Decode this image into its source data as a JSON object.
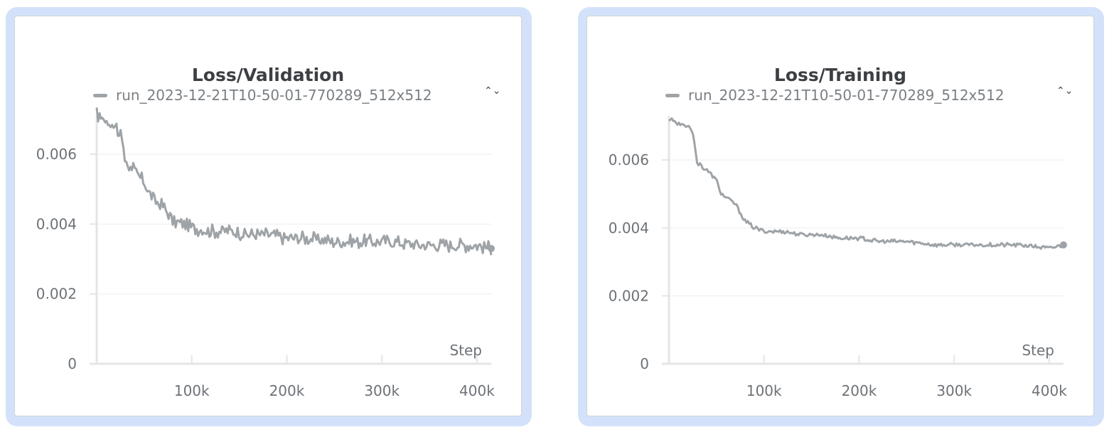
{
  "colors": {
    "series": "#9ea3a7",
    "axis": "#e3e5e7",
    "grid": "#eceef0",
    "panel_border": "#d3e2fa"
  },
  "icons": {
    "legend_toggle": "chevron-up-down-icon"
  },
  "chart_data": [
    {
      "type": "line",
      "title": "Loss/Validation",
      "xlabel": "Step",
      "ylabel": "",
      "xlim": [
        0,
        415000
      ],
      "ylim": [
        0,
        0.0071
      ],
      "xticks": [
        100000,
        200000,
        300000,
        400000
      ],
      "xtick_labels": [
        "100k",
        "200k",
        "300k",
        "400k"
      ],
      "yticks": [
        0,
        0.002,
        0.004,
        0.006
      ],
      "ytick_labels": [
        "0",
        "0.002",
        "0.004",
        "0.006"
      ],
      "grid": true,
      "legend_position": "top",
      "legend_toggle": "⌃⌄",
      "series": [
        {
          "name": "run_2023-12-21T10-50-01-770289_512x512",
          "x": [
            0,
            10000,
            20000,
            25000,
            30000,
            40000,
            50000,
            55000,
            60000,
            70000,
            80000,
            90000,
            100000,
            120000,
            140000,
            160000,
            180000,
            200000,
            220000,
            250000,
            280000,
            310000,
            340000,
            370000,
            400000,
            415000
          ],
          "y": [
            0.0071,
            0.007,
            0.0068,
            0.0066,
            0.0058,
            0.0055,
            0.0052,
            0.0049,
            0.0047,
            0.0045,
            0.0041,
            0.004,
            0.0039,
            0.0038,
            0.0038,
            0.0037,
            0.0037,
            0.0036,
            0.0036,
            0.0035,
            0.0035,
            0.0035,
            0.0034,
            0.0034,
            0.0034,
            0.0033
          ]
        }
      ]
    },
    {
      "type": "line",
      "title": "Loss/Training",
      "xlabel": "Step",
      "ylabel": "",
      "xlim": [
        0,
        415000
      ],
      "ylim": [
        0,
        0.0073
      ],
      "xticks": [
        100000,
        200000,
        300000,
        400000
      ],
      "xtick_labels": [
        "100k",
        "200k",
        "300k",
        "400k"
      ],
      "yticks": [
        0,
        0.002,
        0.004,
        0.006
      ],
      "ytick_labels": [
        "0",
        "0.002",
        "0.004",
        "0.006"
      ],
      "grid": true,
      "legend_position": "top",
      "legend_toggle": "⌃⌄",
      "series": [
        {
          "name": "run_2023-12-21T10-50-01-770289_512x512",
          "x": [
            0,
            10000,
            20000,
            25000,
            30000,
            40000,
            50000,
            55000,
            60000,
            70000,
            80000,
            90000,
            100000,
            120000,
            140000,
            160000,
            180000,
            200000,
            220000,
            250000,
            280000,
            310000,
            340000,
            370000,
            400000,
            415000
          ],
          "y": [
            0.0072,
            0.0071,
            0.007,
            0.0068,
            0.0059,
            0.0057,
            0.0054,
            0.005,
            0.0049,
            0.0047,
            0.0042,
            0.004,
            0.0039,
            0.0039,
            0.0038,
            0.0038,
            0.0037,
            0.0037,
            0.0036,
            0.0036,
            0.0035,
            0.0035,
            0.0035,
            0.0035,
            0.0034,
            0.0035
          ]
        }
      ]
    }
  ]
}
